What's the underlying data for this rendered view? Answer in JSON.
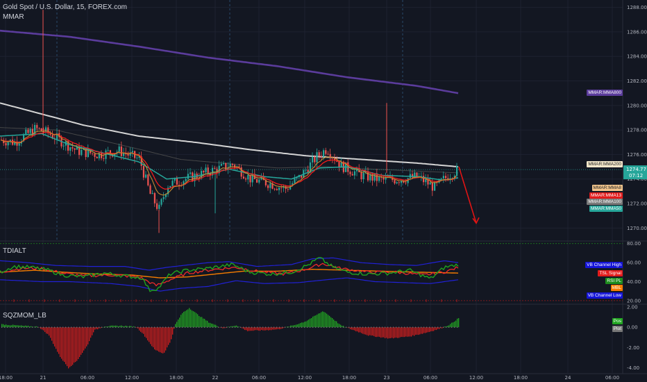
{
  "header": {
    "symbol": "Gold Spot / U.S. Dollar, 15, FOREX.com",
    "mmar_label": "MMAR",
    "tdi_label": "TDIALT",
    "sqz_label": "SQZMOM_LB"
  },
  "colors": {
    "background": "#131722",
    "grid": "#1e2230",
    "up_candle": "#26a69a",
    "down_candle": "#ef5350",
    "wick": "#ef5350",
    "ma200": "#d4d4d4",
    "ma800": "#5b3c9c",
    "ma100": "#4c4c4c",
    "ma50": "#26a69a",
    "ma13": "#ef1c1c",
    "ma8": "#c38b32",
    "vb_band": "#2121d6",
    "rsi_pl": "#1fa31f",
    "tsl_signal": "#ef2a2a",
    "mbl": "#f57c00",
    "sqz_pos": "#22a622",
    "sqz_neg": "#d11e1e",
    "arrow": "#e01414"
  },
  "price_axis": {
    "ticks": [
      "1288.00",
      "1286.00",
      "1284.00",
      "1282.00",
      "1280.00",
      "1278.00",
      "1276.00",
      "1274.00",
      "1272.00",
      "1270.00"
    ],
    "current_price": "1274.77",
    "countdown": "07:12"
  },
  "tdi_axis": {
    "ticks": [
      "80.00",
      "60.00",
      "40.00",
      "20.00"
    ]
  },
  "sqz_axis": {
    "ticks": [
      "2.00",
      "0.00",
      "-2.00",
      "-4.00"
    ]
  },
  "time_axis": [
    "18:00",
    "21",
    "06:00",
    "12:00",
    "18:00",
    "22",
    "06:00",
    "12:00",
    "18:00",
    "23",
    "06:00",
    "12:00",
    "18:00",
    "24",
    "06:00"
  ],
  "price_tags": {
    "ma800": "MMAR:MMA800",
    "ma200": "MMAR:MMA200",
    "ma8": "MMAR:MMA8",
    "ma13": "MMAR:MMA13",
    "ma100": "MMAR:MMA100",
    "ma50": "MMAR:MMA50"
  },
  "tdi_tags": {
    "vb_high": "VB Channel High",
    "tsl": "TSL Signal",
    "rsi_pl": "RSI PL",
    "mbl": "MBL",
    "vb_low": "VB Channel Low"
  },
  "sqz_tags": {
    "pos": "Pos",
    "plot": "Plot"
  },
  "chart_data": [
    {
      "type": "line",
      "title": "Gold Spot / U.S. Dollar, 15, FOREX.com",
      "ylim": [
        1269,
        1288.6
      ],
      "x_ticks": [
        "18:00",
        "21",
        "06:00",
        "12:00",
        "18:00",
        "22",
        "06:00",
        "12:00",
        "18:00",
        "23",
        "06:00",
        "12:00",
        "18:00",
        "24",
        "06:00"
      ],
      "series": [
        {
          "name": "MMAR:MMA800",
          "values": [
            1286.1,
            1285.1,
            1284.0,
            1282.9,
            1281.9,
            1281.0
          ]
        },
        {
          "name": "MMAR:MMA200",
          "values": [
            1280.2,
            1278.1,
            1276.9,
            1276.1,
            1275.4,
            1275.0
          ]
        },
        {
          "name": "MMAR:MMA8",
          "values": [
            1277.7,
            1276.4,
            1274.3,
            1273.7,
            1274.4,
            1274.4
          ]
        },
        {
          "name": "MMAR:MMA13",
          "values": [
            1277.8,
            1276.6,
            1274.4,
            1273.6,
            1274.3,
            1274.3
          ]
        },
        {
          "name": "MMAR:MMA50",
          "values": [
            1277.9,
            1276.2,
            1274.6,
            1274.3,
            1274.2,
            1274.1
          ]
        },
        {
          "name": "MMAR:MMA100",
          "values": [
            1278.0,
            1276.7,
            1275.0,
            1274.4,
            1274.3,
            1274.2
          ]
        }
      ],
      "current_price": 1274.77,
      "projection_target": 1270.4
    },
    {
      "type": "line",
      "title": "TDIALT",
      "ylim": [
        17,
        82
      ],
      "series": [
        {
          "name": "VB Channel High",
          "values": [
            62,
            58,
            54,
            52,
            55,
            57
          ]
        },
        {
          "name": "TSL Signal",
          "values": [
            50,
            48,
            45,
            46,
            49,
            55
          ]
        },
        {
          "name": "RSI PL",
          "values": [
            50,
            47,
            44,
            47,
            50,
            58
          ]
        },
        {
          "name": "MBL",
          "values": [
            49,
            48,
            46,
            46,
            48,
            50
          ]
        },
        {
          "name": "VB Channel Low",
          "values": [
            40,
            38,
            36,
            38,
            40,
            43
          ]
        }
      ]
    },
    {
      "type": "bar",
      "title": "SQZMOM_LB",
      "ylim": [
        -4.5,
        2.2
      ],
      "series": [
        {
          "name": "Pos",
          "values": [
            0.05,
            0.05,
            0.2,
            -4.0,
            -2.6,
            1.95,
            0.2,
            -0.35,
            -0.6,
            1.6,
            0.4,
            -1.4,
            0.45,
            0.95
          ]
        }
      ]
    }
  ]
}
